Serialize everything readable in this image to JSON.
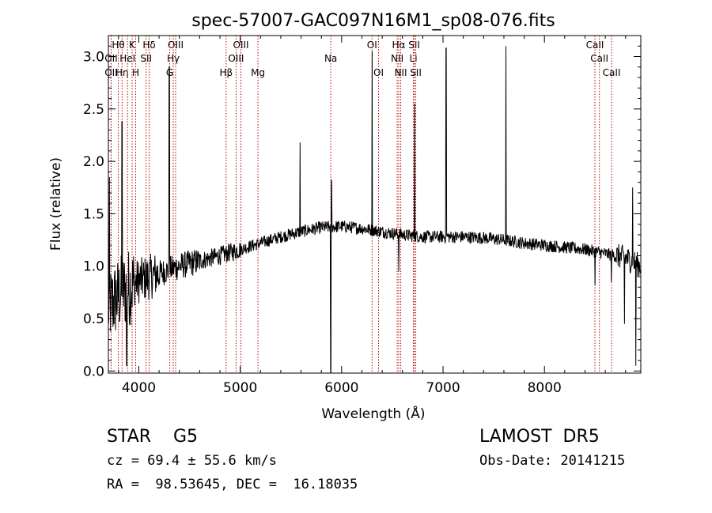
{
  "chart_data": {
    "type": "line",
    "title": "spec-57007-GAC097N16M1_sp08-076.fits",
    "xlabel": "Wavelength (Å)",
    "ylabel": "Flux (relative)",
    "xlim": [
      3700,
      8950
    ],
    "ylim": [
      -0.02,
      3.2
    ],
    "xticks": [
      4000,
      5000,
      6000,
      7000,
      8000
    ],
    "xtick_labels": [
      "4000",
      "5000",
      "6000",
      "7000",
      "8000"
    ],
    "yticks": [
      0.0,
      0.5,
      1.0,
      1.5,
      2.0,
      2.5,
      3.0
    ],
    "ytick_labels": [
      "0.0",
      "0.5",
      "1.0",
      "1.5",
      "2.0",
      "2.5",
      "3.0"
    ],
    "continuum": [
      [
        3700,
        0.6
      ],
      [
        3800,
        0.72
      ],
      [
        3900,
        0.8
      ],
      [
        4000,
        0.86
      ],
      [
        4200,
        0.93
      ],
      [
        4400,
        1.0
      ],
      [
        4600,
        1.05
      ],
      [
        4800,
        1.1
      ],
      [
        5000,
        1.16
      ],
      [
        5200,
        1.22
      ],
      [
        5400,
        1.28
      ],
      [
        5600,
        1.33
      ],
      [
        5800,
        1.37
      ],
      [
        6000,
        1.38
      ],
      [
        6200,
        1.36
      ],
      [
        6400,
        1.33
      ],
      [
        6600,
        1.3
      ],
      [
        6800,
        1.28
      ],
      [
        7000,
        1.28
      ],
      [
        7200,
        1.28
      ],
      [
        7400,
        1.27
      ],
      [
        7600,
        1.25
      ],
      [
        7800,
        1.22
      ],
      [
        8000,
        1.2
      ],
      [
        8200,
        1.18
      ],
      [
        8400,
        1.16
      ],
      [
        8600,
        1.12
      ],
      [
        8800,
        1.08
      ],
      [
        8950,
        1.0
      ]
    ],
    "features": [
      {
        "x": 3710,
        "y": 1.85
      },
      {
        "x": 3835,
        "y": 2.38
      },
      {
        "x": 3880,
        "y": 0.05
      },
      {
        "x": 4300,
        "y": 2.9
      },
      {
        "x": 5590,
        "y": 2.18
      },
      {
        "x": 5893,
        "y": -0.02
      },
      {
        "x": 5900,
        "y": 1.82
      },
      {
        "x": 6300,
        "y": 3.05
      },
      {
        "x": 6564,
        "y": 0.95
      },
      {
        "x": 6720,
        "y": 2.55
      },
      {
        "x": 7030,
        "y": 3.08
      },
      {
        "x": 7620,
        "y": 3.1
      },
      {
        "x": 8498,
        "y": 0.82
      },
      {
        "x": 8660,
        "y": 0.85
      },
      {
        "x": 8790,
        "y": 0.45
      },
      {
        "x": 8870,
        "y": 1.75
      },
      {
        "x": 8900,
        "y": 0.05
      }
    ],
    "line_markers": [
      {
        "label": "Hθ",
        "x": 3798,
        "row": 1
      },
      {
        "label": "OII",
        "x": 3727,
        "row": 2
      },
      {
        "label": "OII",
        "x": 3727,
        "row": 3
      },
      {
        "label": "Hη",
        "x": 3835,
        "row": 3
      },
      {
        "label": "K",
        "x": 3934,
        "row": 1
      },
      {
        "label": "HeI",
        "x": 3889,
        "row": 2
      },
      {
        "label": "H",
        "x": 3969,
        "row": 3
      },
      {
        "label": "Hδ",
        "x": 4102,
        "row": 1
      },
      {
        "label": "SII",
        "x": 4072,
        "row": 2
      },
      {
        "label": "OIII",
        "x": 4363,
        "row": 1
      },
      {
        "label": "Hγ",
        "x": 4340,
        "row": 2
      },
      {
        "label": "G",
        "x": 4305,
        "row": 3
      },
      {
        "label": "OIII",
        "x": 5007,
        "row": 1
      },
      {
        "label": "OIII",
        "x": 4959,
        "row": 2
      },
      {
        "label": "Hβ",
        "x": 4861,
        "row": 3
      },
      {
        "label": "Mg",
        "x": 5175,
        "row": 3
      },
      {
        "label": "Na",
        "x": 5893,
        "row": 2
      },
      {
        "label": "OI",
        "x": 6300,
        "row": 1
      },
      {
        "label": "OI",
        "x": 6364,
        "row": 3
      },
      {
        "label": "Hα",
        "x": 6563,
        "row": 1
      },
      {
        "label": "NII",
        "x": 6548,
        "row": 2
      },
      {
        "label": "NII",
        "x": 6583,
        "row": 3
      },
      {
        "label": "SII",
        "x": 6716,
        "row": 1
      },
      {
        "label": "Li",
        "x": 6708,
        "row": 2
      },
      {
        "label": "SII",
        "x": 6731,
        "row": 3
      },
      {
        "label": "CaII",
        "x": 8498,
        "row": 1
      },
      {
        "label": "CaII",
        "x": 8542,
        "row": 2
      },
      {
        "label": "CaII",
        "x": 8662,
        "row": 3
      }
    ]
  },
  "info": {
    "class": "STAR    G5",
    "survey": "LAMOST  DR5",
    "redshift": "cz = 69.4 ± 55.6 km/s",
    "obs_date": "Obs-Date: 20141215",
    "coords": "RA =  98.53645, DEC =  16.18035"
  }
}
